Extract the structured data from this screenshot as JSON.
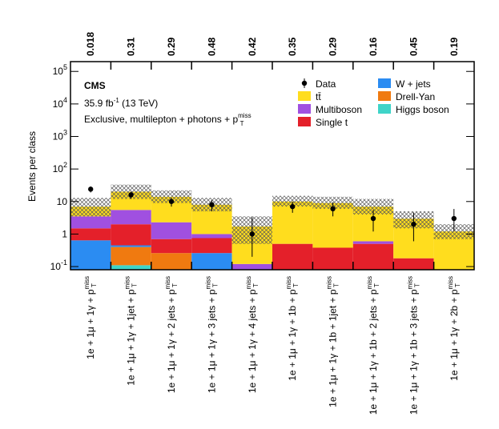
{
  "chart_data": {
    "type": "stacked_bar_log",
    "title": "CMS",
    "lumi": {
      "base": "35.9 fb",
      "exp": "-1",
      "rest": " (13 TeV)"
    },
    "subtitle": {
      "base": "Exclusive, multilepton + photons + p",
      "sub": "T",
      "sup": "miss"
    },
    "ylabel": "Events per class",
    "log_y": true,
    "ylim": [
      0.08,
      200000
    ],
    "yticks": [
      {
        "value": 0.1,
        "label": "10",
        "exponent": "-1"
      },
      1,
      10,
      {
        "value": 100,
        "label": "10",
        "exponent": "2"
      },
      {
        "value": 1000,
        "label": "10",
        "exponent": "3"
      },
      {
        "value": 10000,
        "label": "10",
        "exponent": "4"
      },
      {
        "value": 100000,
        "label": "10",
        "exponent": "5"
      }
    ],
    "categories": [
      "1e + 1μ + 1γ + p",
      "1e + 1μ + 1γ + 1jet + p",
      "1e + 1μ + 1γ + 2 jets + p",
      "1e + 1μ + 1γ + 3 jets + p",
      "1e + 1μ + 1γ + 4 jets + p",
      "1e + 1μ + 1γ + 1b + p",
      "1e + 1μ + 1γ + 1b + 1jet + p",
      "1e + 1μ + 1γ + 1b + 2 jets + p",
      "1e + 1μ + 1γ + 1b + 3 jets + p",
      "1e + 1μ + 1γ + 2b + p"
    ],
    "category_sub": "T",
    "category_sup": "miss",
    "top_labels": [
      0.018,
      0.31,
      0.29,
      0.48,
      0.42,
      0.35,
      0.29,
      0.16,
      0.45,
      0.19
    ],
    "series": [
      {
        "name": "Higgs boson",
        "color": "#3fd4c8",
        "values": [
          0,
          0.11,
          0,
          0,
          0,
          0,
          0,
          0,
          0,
          0
        ]
      },
      {
        "name": "Drell-Yan",
        "color": "#f07a10",
        "values": [
          0,
          0.29,
          0.26,
          0,
          0,
          0,
          0,
          0,
          0,
          0
        ]
      },
      {
        "name": "W + jets",
        "color": "#2b8cf2",
        "values": [
          0.64,
          0.05,
          0,
          0.26,
          0,
          0,
          0,
          0,
          0,
          0
        ]
      },
      {
        "name": "Single t",
        "color": "#e4202a",
        "values": [
          0.86,
          1.55,
          0.44,
          0.49,
          0,
          0.5,
          0.38,
          0.5,
          0.18,
          0
        ]
      },
      {
        "name": "Multiboson",
        "color": "#a050e0",
        "values": [
          2.0,
          3.5,
          1.6,
          0.25,
          0.12,
          0,
          0,
          0.1,
          0,
          0
        ]
      },
      {
        "name": "tt̄",
        "color": "#ffdd1e",
        "values": [
          3.5,
          14.5,
          11.7,
          7,
          1.6,
          9.5,
          8.6,
          6.4,
          2.8,
          1.2
        ]
      }
    ],
    "band": {
      "low": [
        3.5,
        12,
        9,
        5,
        0.5,
        7,
        6,
        4,
        1.5,
        0.7
      ],
      "high": [
        13,
        33,
        22,
        13,
        3.5,
        15,
        14,
        12,
        5,
        2
      ]
    },
    "data": {
      "name": "Data",
      "values": [
        24,
        16,
        10,
        8,
        1,
        7,
        6,
        3,
        2,
        3
      ],
      "errors_low": [
        5,
        4,
        3,
        3,
        0.8,
        2.5,
        2.5,
        1.8,
        1.4,
        1.8
      ],
      "errors_high": [
        5,
        4,
        3,
        3,
        2.3,
        3,
        3.5,
        2.5,
        2.6,
        2.9
      ]
    },
    "legend_order": [
      [
        6,
        5,
        4,
        3
      ],
      [
        2,
        1,
        0
      ]
    ]
  }
}
